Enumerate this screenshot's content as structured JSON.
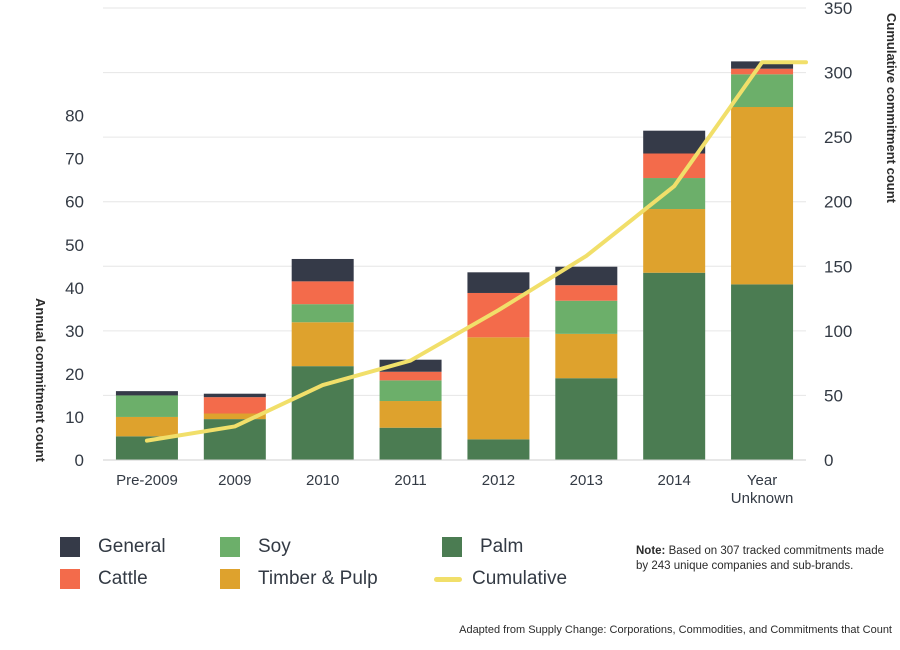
{
  "chart_data": {
    "type": "bar",
    "stacked": true,
    "categories": [
      "Pre-2009",
      "2009",
      "2010",
      "2011",
      "2012",
      "2013",
      "2014",
      "Year Unknown"
    ],
    "category_lines": [
      [
        "Pre-2009"
      ],
      [
        "2009"
      ],
      [
        "2010"
      ],
      [
        "2011"
      ],
      [
        "2012"
      ],
      [
        "2013"
      ],
      [
        "2014"
      ],
      [
        "Year",
        "Unknown"
      ]
    ],
    "series": [
      {
        "name": "Palm",
        "color": "#4b7c52",
        "values": [
          5.5,
          9.5,
          21.8,
          7.5,
          4.8,
          19,
          43.5,
          40.8
        ]
      },
      {
        "name": "Timber & Pulp",
        "color": "#dea22d",
        "values": [
          4.5,
          1.3,
          10.2,
          6.2,
          23.7,
          10.3,
          14.8,
          41.2
        ]
      },
      {
        "name": "Soy",
        "color": "#6caf6a",
        "values": [
          5,
          0,
          4.2,
          4.8,
          0,
          7.7,
          7.2,
          7.6
        ]
      },
      {
        "name": "Cattle",
        "color": "#f36b4b",
        "values": [
          0,
          3.8,
          5.3,
          2,
          10.3,
          3.6,
          5.7,
          1.3
        ]
      },
      {
        "name": "General",
        "color": "#353a48",
        "values": [
          1,
          0.8,
          5.2,
          2.8,
          4.8,
          4.3,
          5.3,
          1.7
        ]
      }
    ],
    "cumulative": {
      "name": "Cumulative",
      "color": "#f1df6a",
      "values": [
        15,
        26,
        58,
        77,
        116,
        158,
        212,
        308
      ],
      "end_value": 308
    },
    "y_left": {
      "label": "Annual commitment count",
      "ticks": [
        0,
        10,
        20,
        30,
        40,
        50,
        60,
        70,
        80
      ],
      "max": 105
    },
    "y_right": {
      "label": "Cumulative commitment count",
      "ticks": [
        0,
        50,
        100,
        150,
        200,
        250,
        300,
        350
      ],
      "max": 350
    },
    "grid": true,
    "legend_position": "bottom"
  },
  "legend": [
    {
      "label": "General",
      "color": "#353a48",
      "kind": "box"
    },
    {
      "label": "Soy",
      "color": "#6caf6a",
      "kind": "box"
    },
    {
      "label": "Palm",
      "color": "#4b7c52",
      "kind": "box"
    },
    {
      "label": "Cattle",
      "color": "#f36b4b",
      "kind": "box"
    },
    {
      "label": "Timber & Pulp",
      "color": "#dea22d",
      "kind": "box"
    },
    {
      "label": "Cumulative",
      "color": "#f1df6a",
      "kind": "line"
    }
  ],
  "note": {
    "heading": "Note:",
    "text": " Based on 307 tracked commitments made by 243 unique companies and sub-brands."
  },
  "source": "Adapted from Supply Change: Corporations, Commodities, and Commitments that Count"
}
